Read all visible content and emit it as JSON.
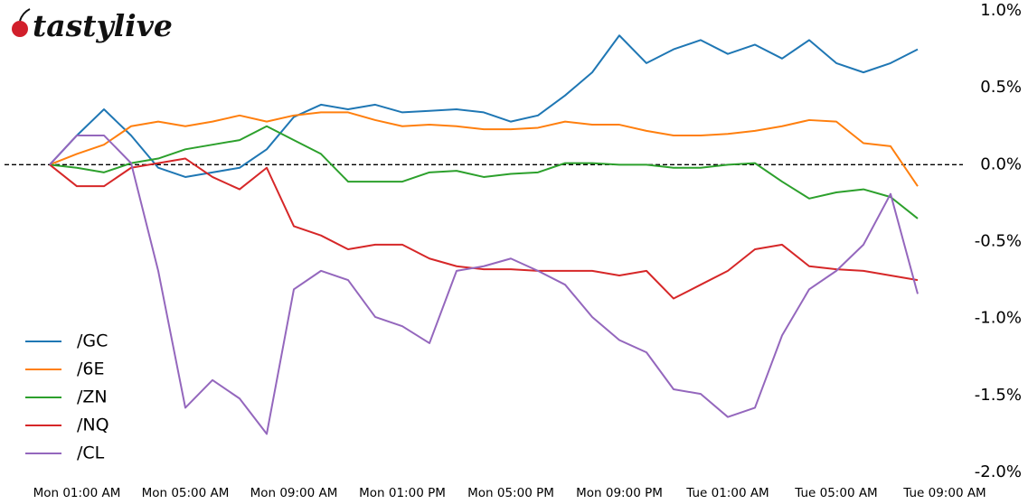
{
  "brand": "tastylive",
  "chart_data": {
    "type": "line",
    "x": [
      null,
      "Mon 01:00 AM",
      null,
      null,
      null,
      "Mon 05:00 AM",
      null,
      null,
      null,
      "Mon 09:00 AM",
      null,
      null,
      null,
      "Mon 01:00 PM",
      null,
      null,
      null,
      "Mon 05:00 PM",
      null,
      null,
      null,
      "Mon 09:00 PM",
      null,
      null,
      null,
      "Tue 01:00 AM",
      null,
      null,
      null,
      "Tue 05:00 AM",
      null,
      null,
      null,
      "Tue 09:00 AM"
    ],
    "series": [
      {
        "name": "/GC",
        "color": "#1f77b4",
        "values": [
          0,
          0.19,
          0.36,
          0.19,
          -0.02,
          -0.08,
          -0.05,
          -0.02,
          0.1,
          0.31,
          0.39,
          0.36,
          0.39,
          0.34,
          0.35,
          0.36,
          0.34,
          0.28,
          0.32,
          0.45,
          0.6,
          0.84,
          0.66,
          0.75,
          0.81,
          0.72,
          0.78,
          0.69,
          0.81,
          0.66,
          0.6,
          0.66,
          0.75,
          null
        ]
      },
      {
        "name": "/6E",
        "color": "#ff7f0e",
        "values": [
          0,
          0.07,
          0.13,
          0.25,
          0.28,
          0.25,
          0.28,
          0.32,
          0.28,
          0.32,
          0.34,
          0.34,
          0.29,
          0.25,
          0.26,
          0.25,
          0.23,
          0.23,
          0.24,
          0.28,
          0.26,
          0.26,
          0.22,
          0.19,
          0.19,
          0.2,
          0.22,
          0.25,
          0.29,
          0.28,
          0.14,
          0.12,
          -0.14,
          null
        ]
      },
      {
        "name": "/ZN",
        "color": "#2ca02c",
        "values": [
          0,
          -0.02,
          -0.05,
          0.01,
          0.04,
          0.1,
          0.13,
          0.16,
          0.25,
          0.16,
          0.07,
          -0.11,
          -0.11,
          -0.11,
          -0.05,
          -0.04,
          -0.08,
          -0.06,
          -0.05,
          0.01,
          0.01,
          0,
          0,
          -0.02,
          -0.02,
          0,
          0.01,
          -0.11,
          -0.22,
          -0.18,
          -0.16,
          -0.21,
          -0.35,
          null
        ]
      },
      {
        "name": "/NQ",
        "color": "#d62728",
        "values": [
          0,
          -0.14,
          -0.14,
          -0.02,
          0.01,
          0.04,
          -0.08,
          -0.16,
          -0.02,
          -0.4,
          -0.46,
          -0.55,
          -0.52,
          -0.52,
          -0.61,
          -0.66,
          -0.68,
          -0.68,
          -0.69,
          -0.69,
          -0.69,
          -0.72,
          -0.69,
          -0.87,
          -0.78,
          -0.69,
          -0.55,
          -0.52,
          -0.66,
          -0.68,
          -0.69,
          -0.72,
          -0.75,
          null
        ]
      },
      {
        "name": "/CL",
        "color": "#9467bd",
        "values": [
          0,
          0.19,
          0.19,
          0.01,
          -0.69,
          -1.58,
          -1.4,
          -1.52,
          -1.75,
          -0.81,
          -0.69,
          -0.75,
          -0.99,
          -1.05,
          -1.16,
          -0.69,
          -0.66,
          -0.61,
          -0.69,
          -0.78,
          -0.99,
          -1.14,
          -1.22,
          -1.46,
          -1.49,
          -1.64,
          -1.58,
          -1.11,
          -0.81,
          -0.69,
          -0.52,
          -0.19,
          -0.84,
          null
        ]
      }
    ],
    "ylim": [
      -2,
      1
    ],
    "yticks": [
      {
        "value": -2,
        "label": "-2.0%"
      },
      {
        "value": -1.5,
        "label": "-1.5%"
      },
      {
        "value": -1,
        "label": "-1.0%"
      },
      {
        "value": -0.5,
        "label": "-0.5%"
      },
      {
        "value": 0,
        "label": "0.0%"
      },
      {
        "value": 0.5,
        "label": "0.5%"
      },
      {
        "value": 1,
        "label": "1.0%"
      }
    ],
    "reference_line": 0,
    "legend": "lower-left"
  }
}
